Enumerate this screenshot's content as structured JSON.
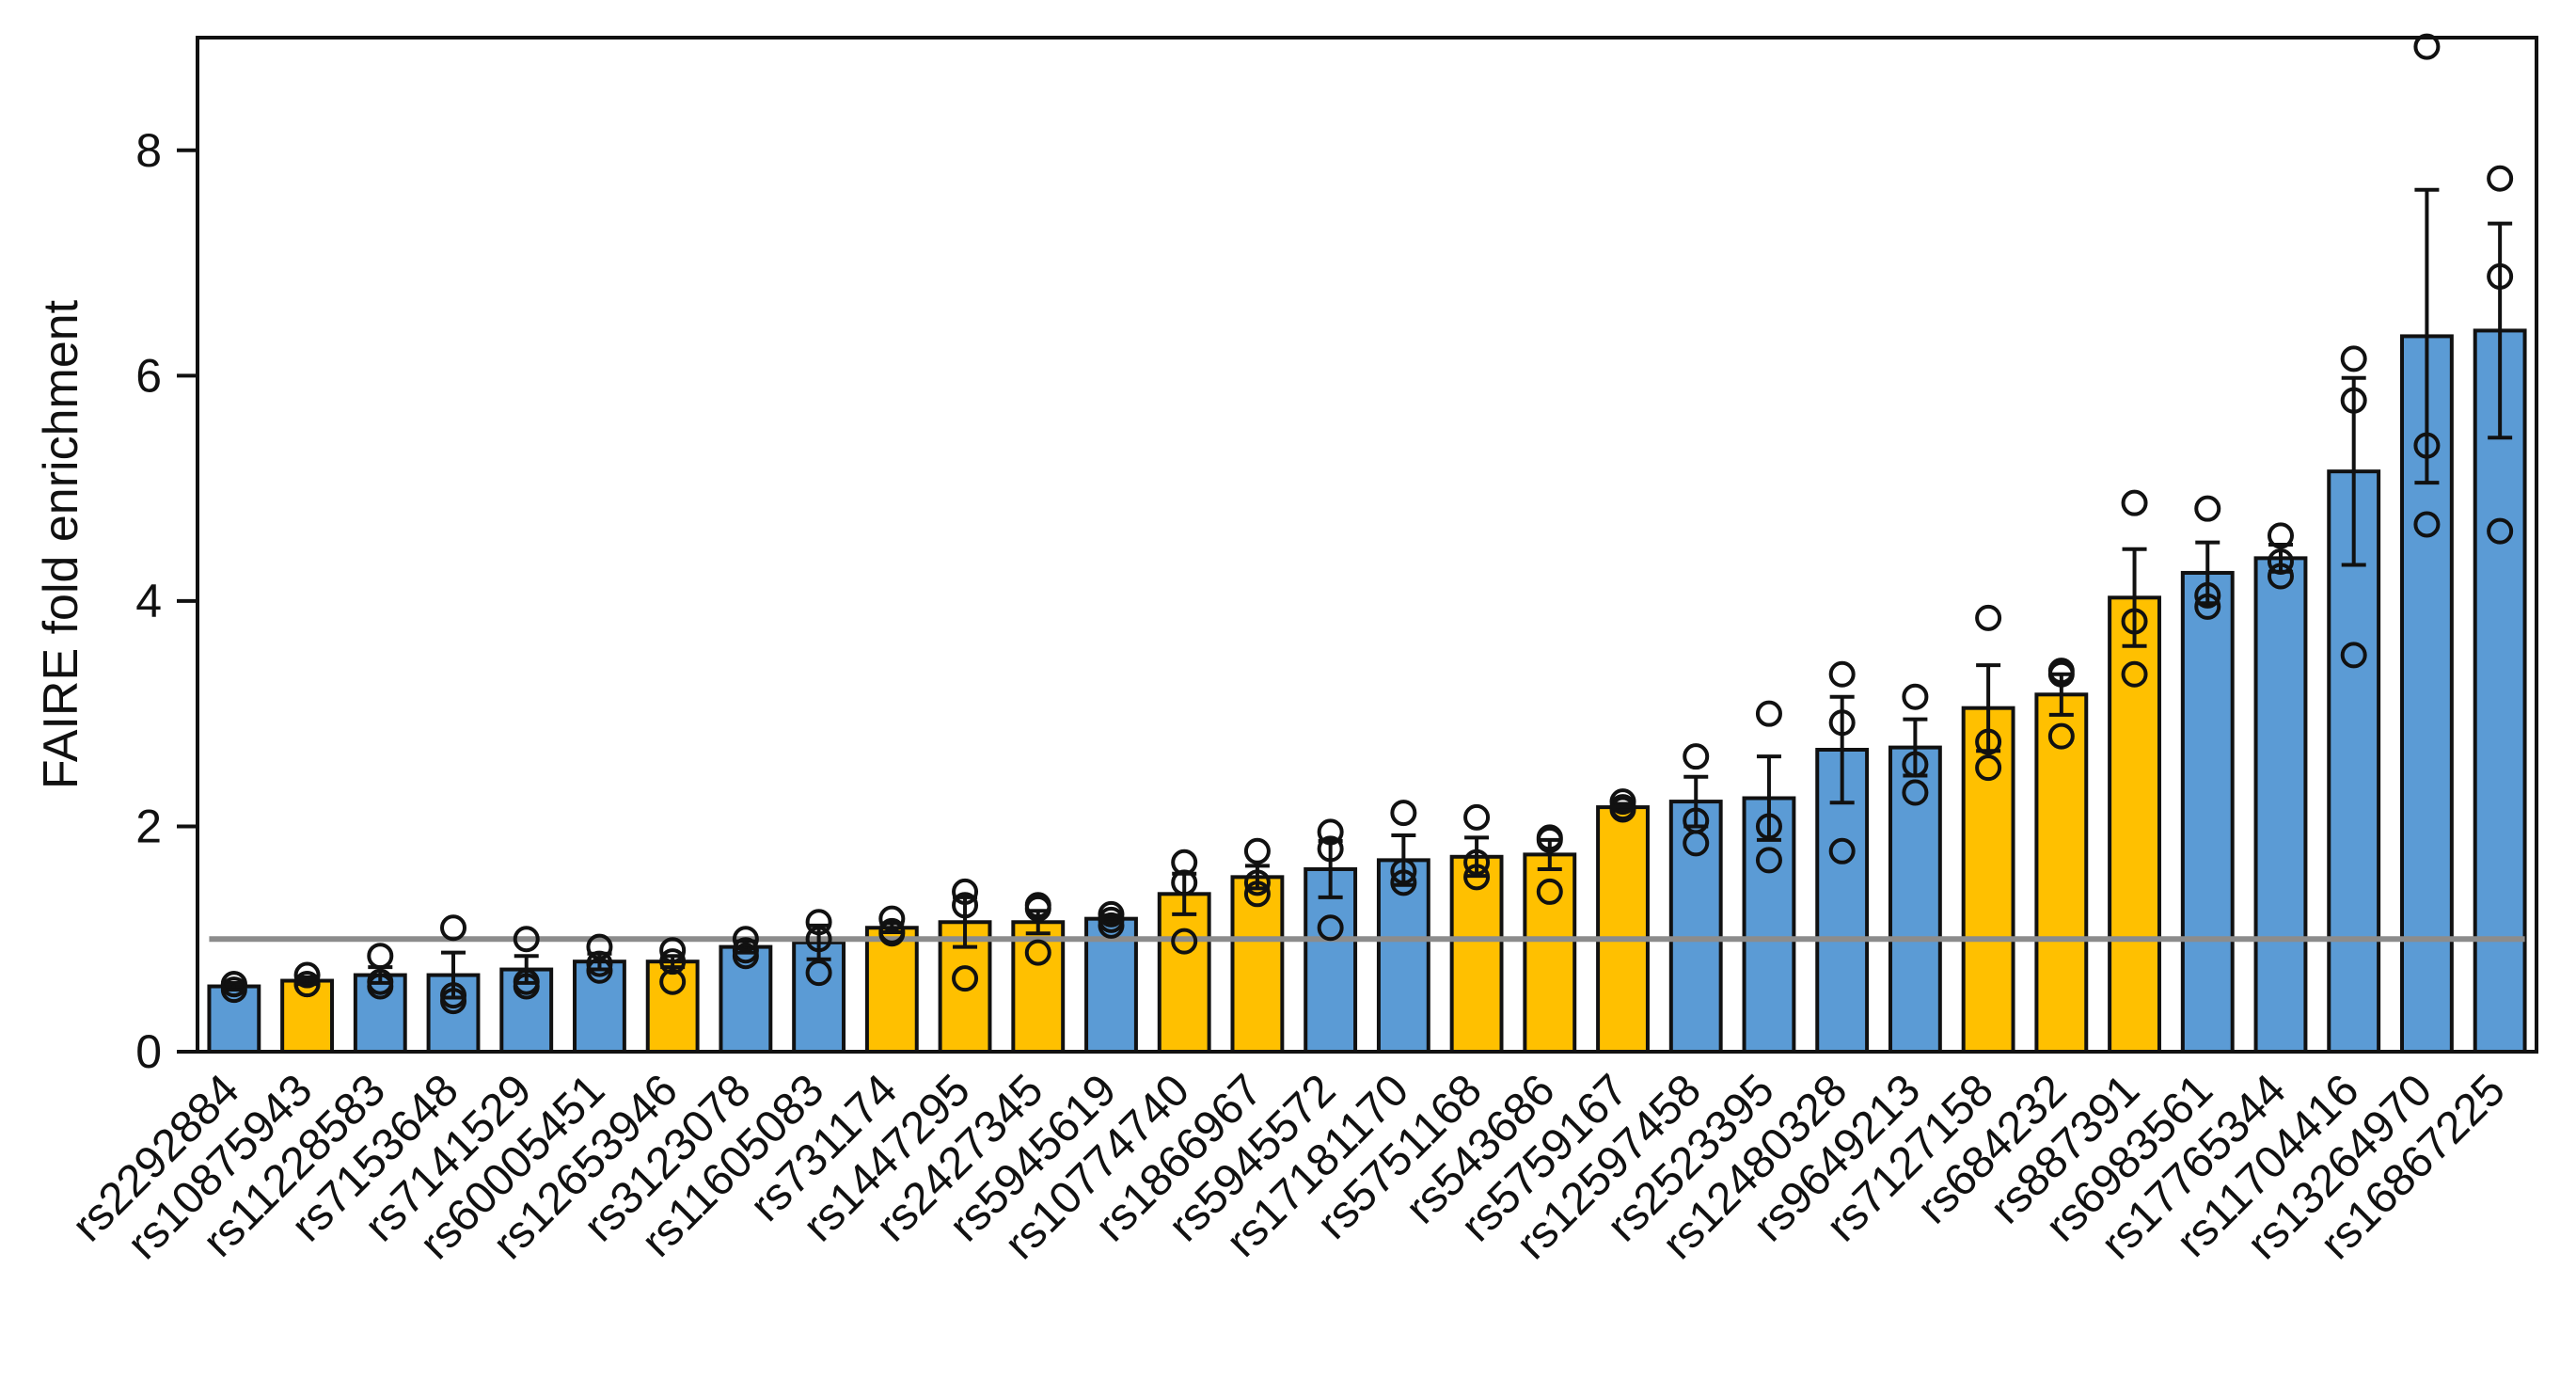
{
  "chart_data": {
    "type": "bar",
    "ylabel": "FAIRE fold enrichment",
    "ylim": [
      0,
      9
    ],
    "yticks": [
      0,
      2,
      4,
      6,
      8
    ],
    "reference_line": 1,
    "colors": {
      "blue": "#5b9bd5",
      "yellow": "#ffc000",
      "reference": "#8c8c8c"
    },
    "categories": [
      "rs2292884",
      "rs10875943",
      "rs11228583",
      "rs7153648",
      "rs7141529",
      "rs60005451",
      "rs12653946",
      "rs3123078",
      "rs11605083",
      "rs731174",
      "rs1447295",
      "rs2427345",
      "rs5945619",
      "rs10774740",
      "rs1866967",
      "rs5945572",
      "rs17181170",
      "rs5751168",
      "rs543686",
      "rs5759167",
      "rs12597458",
      "rs2523395",
      "rs12480328",
      "rs9649213",
      "rs7127158",
      "rs684232",
      "rs887391",
      "rs6983561",
      "rs17765344",
      "rs11704416",
      "rs13264970",
      "rs16867225"
    ],
    "values": [
      0.58,
      0.63,
      0.68,
      0.68,
      0.73,
      0.8,
      0.8,
      0.93,
      0.97,
      1.1,
      1.15,
      1.15,
      1.18,
      1.4,
      1.55,
      1.62,
      1.7,
      1.73,
      1.75,
      2.17,
      2.22,
      2.25,
      2.68,
      2.7,
      3.05,
      3.17,
      4.03,
      4.25,
      4.38,
      5.15,
      6.35,
      6.4
    ],
    "errors": [
      0.03,
      0.03,
      0.07,
      0.2,
      0.12,
      0.07,
      0.05,
      0.05,
      0.15,
      0.04,
      0.22,
      0.1,
      0.03,
      0.18,
      0.1,
      0.25,
      0.22,
      0.17,
      0.13,
      0.03,
      0.22,
      0.37,
      0.47,
      0.25,
      0.38,
      0.18,
      0.43,
      0.27,
      0.12,
      0.83,
      1.3,
      0.95
    ],
    "bar_colors": [
      "blue",
      "yellow",
      "blue",
      "blue",
      "blue",
      "blue",
      "yellow",
      "blue",
      "blue",
      "yellow",
      "yellow",
      "yellow",
      "blue",
      "yellow",
      "yellow",
      "blue",
      "blue",
      "yellow",
      "yellow",
      "yellow",
      "blue",
      "blue",
      "blue",
      "blue",
      "yellow",
      "yellow",
      "yellow",
      "blue",
      "blue",
      "blue",
      "blue",
      "blue"
    ],
    "points": [
      [
        0.55,
        0.6,
        0.6
      ],
      [
        0.6,
        0.6,
        0.68
      ],
      [
        0.58,
        0.62,
        0.85
      ],
      [
        0.45,
        0.5,
        1.1
      ],
      [
        0.58,
        0.62,
        1.0
      ],
      [
        0.72,
        0.78,
        0.93
      ],
      [
        0.62,
        0.8,
        0.9
      ],
      [
        0.85,
        0.9,
        1.0
      ],
      [
        0.7,
        1.0,
        1.15
      ],
      [
        1.05,
        1.07,
        1.18
      ],
      [
        0.65,
        1.3,
        1.42
      ],
      [
        0.88,
        1.27,
        1.3
      ],
      [
        1.12,
        1.17,
        1.22
      ],
      [
        0.98,
        1.5,
        1.68
      ],
      [
        1.4,
        1.5,
        1.78
      ],
      [
        1.1,
        1.8,
        1.95
      ],
      [
        1.5,
        1.6,
        2.12
      ],
      [
        1.55,
        1.68,
        2.08
      ],
      [
        1.42,
        1.88,
        1.9
      ],
      [
        2.15,
        2.17,
        2.22
      ],
      [
        1.85,
        2.05,
        2.62
      ],
      [
        1.7,
        2.0,
        3.0
      ],
      [
        1.78,
        2.92,
        3.35
      ],
      [
        2.3,
        2.55,
        3.15
      ],
      [
        2.52,
        2.75,
        3.85
      ],
      [
        2.8,
        3.35,
        3.38
      ],
      [
        3.35,
        3.82,
        4.87
      ],
      [
        3.95,
        4.05,
        4.82
      ],
      [
        4.22,
        4.35,
        4.58
      ],
      [
        3.52,
        5.78,
        6.15
      ],
      [
        4.68,
        5.38,
        8.92
      ],
      [
        4.62,
        6.88,
        7.75
      ]
    ]
  }
}
